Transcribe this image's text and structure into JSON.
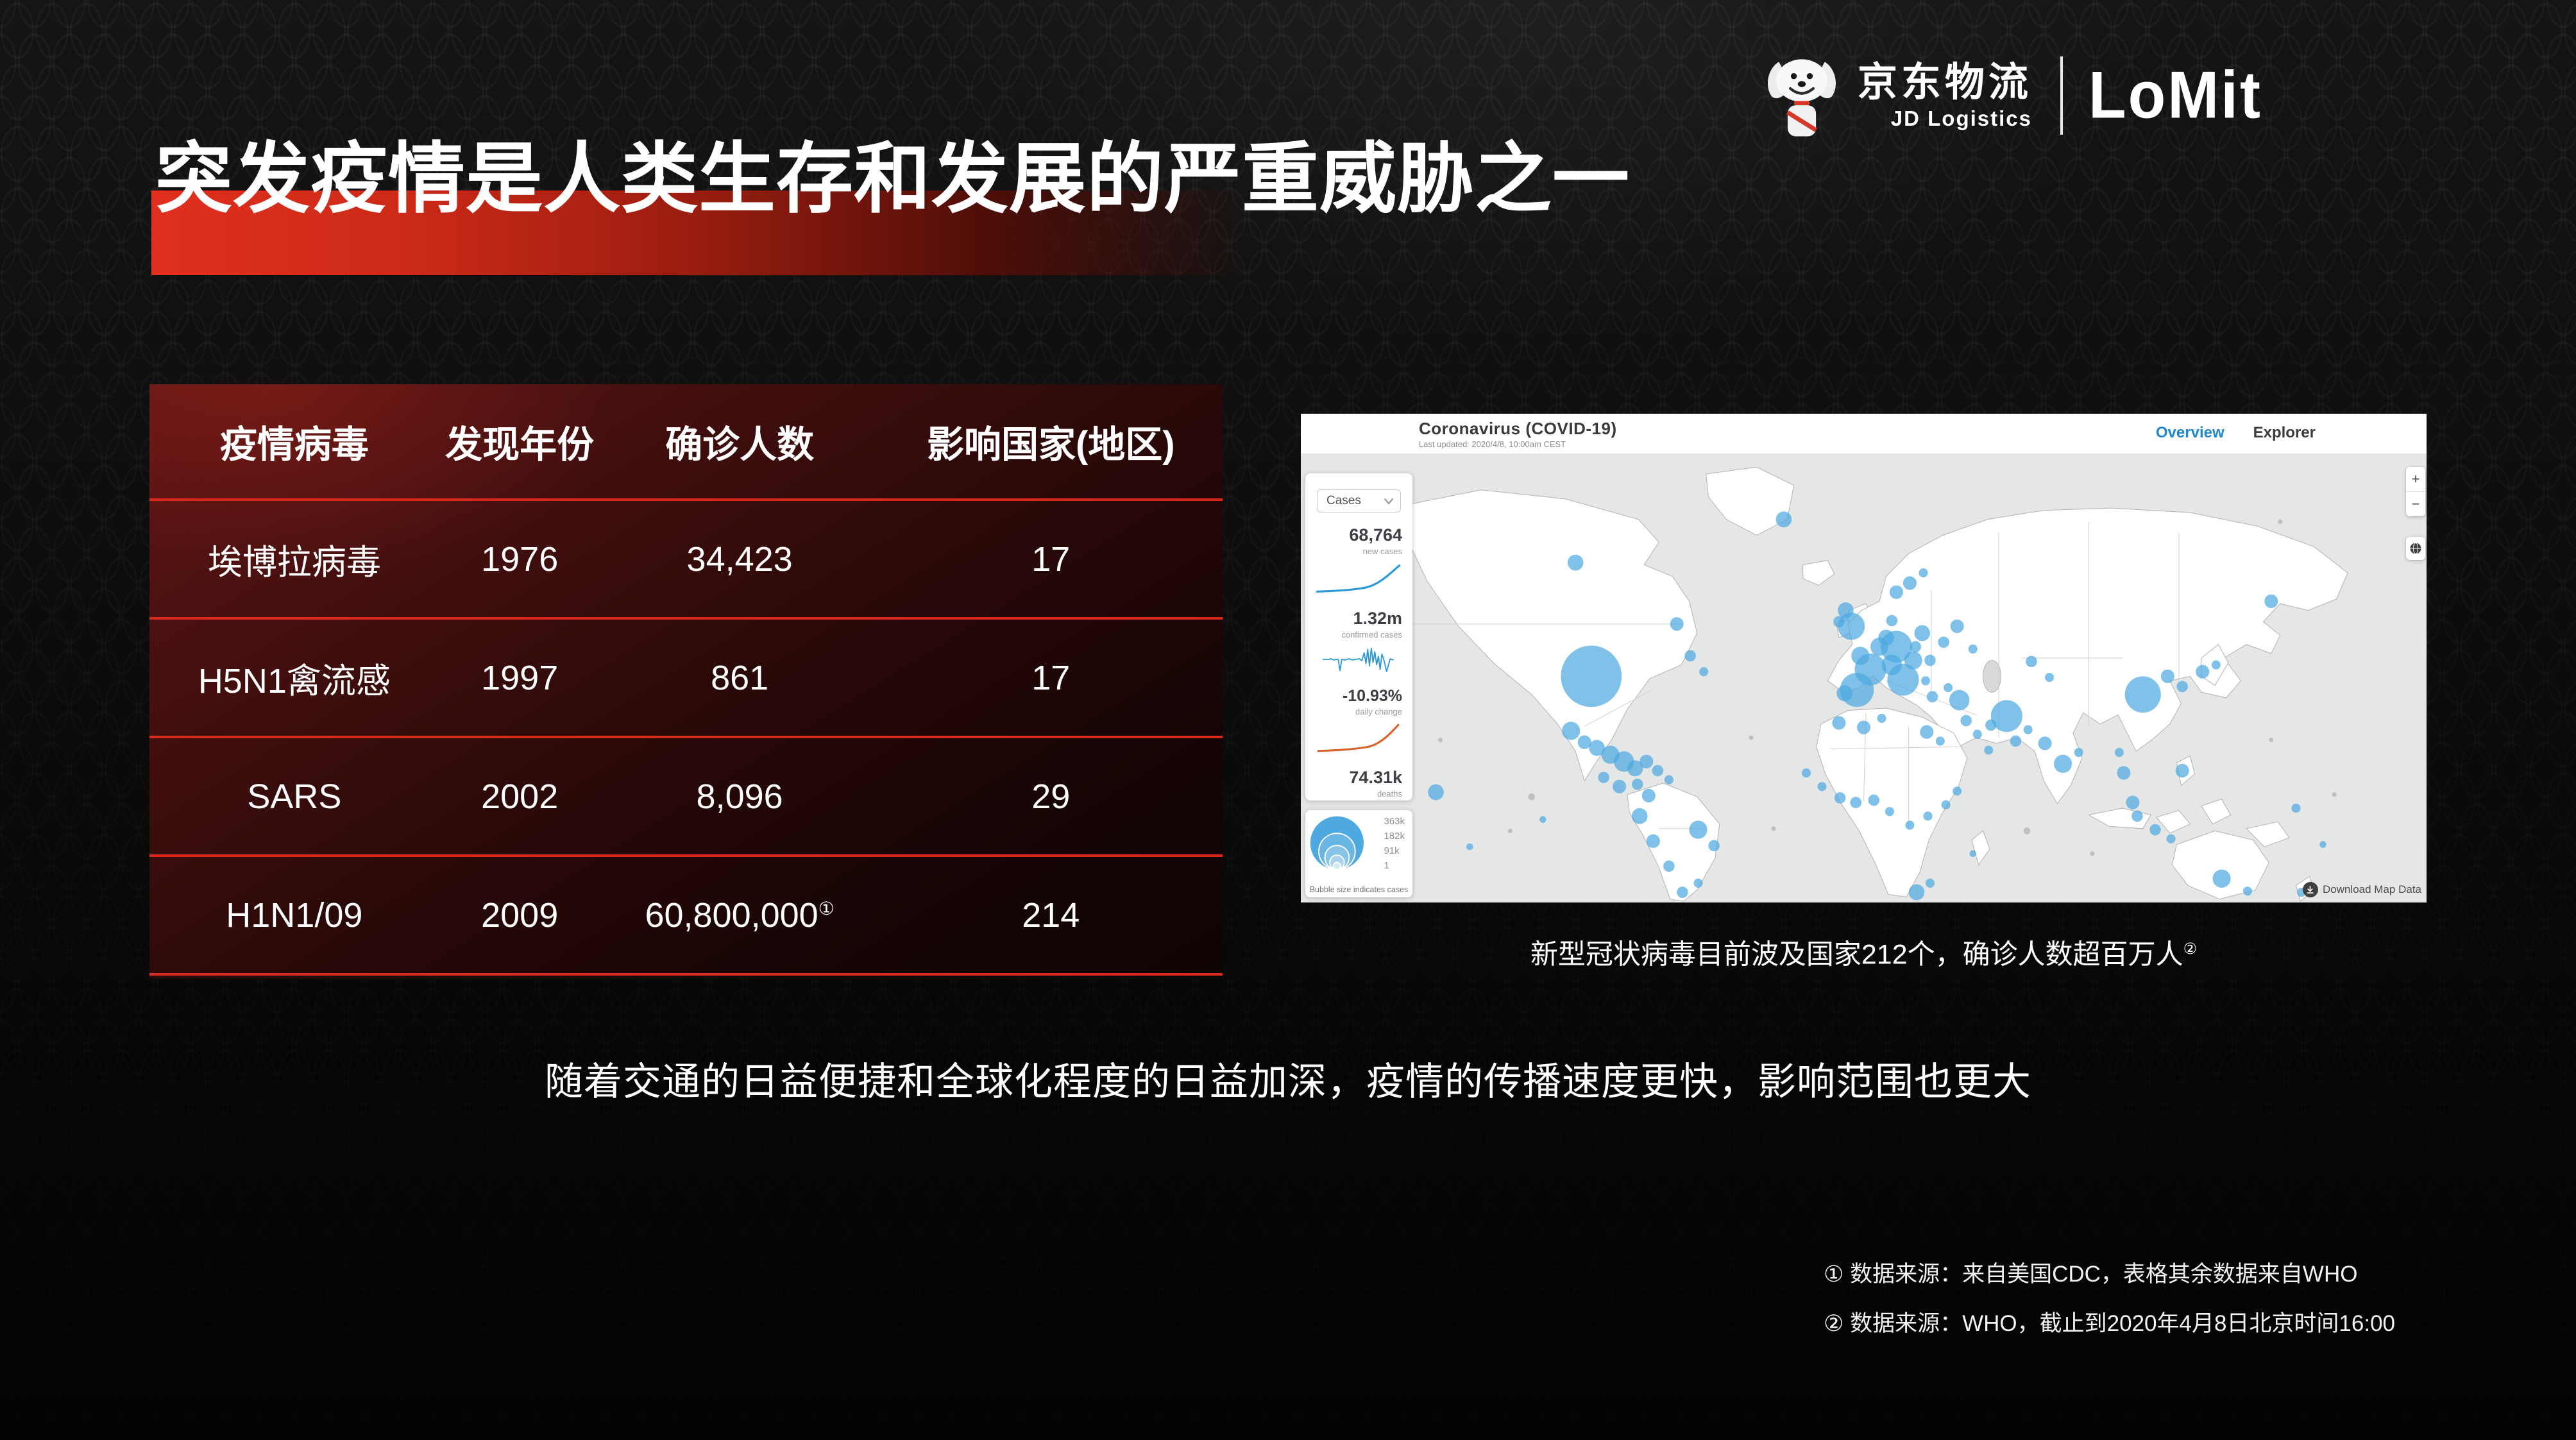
{
  "brand": {
    "jd_cn": "京东物流",
    "jd_en": "JD Logistics",
    "partner": "LoMit"
  },
  "title": "突发疫情是人类生存和发展的严重威胁之一",
  "table": {
    "headers": [
      "疫情病毒",
      "发现年份",
      "确诊人数",
      "影响国家(地区)"
    ],
    "rows": [
      {
        "virus": "埃博拉病毒",
        "year": "1976",
        "cases": "34,423",
        "sup": "",
        "countries": "17"
      },
      {
        "virus": "H5N1禽流感",
        "year": "1997",
        "cases": "861",
        "sup": "",
        "countries": "17"
      },
      {
        "virus": "SARS",
        "year": "2002",
        "cases": "8,096",
        "sup": "",
        "countries": "29"
      },
      {
        "virus": "H1N1/09",
        "year": "2009",
        "cases": "60,800,000",
        "sup": "①",
        "countries": "214"
      }
    ]
  },
  "dashboard": {
    "title": "Coronavirus (COVID-19)",
    "last_updated": "Last updated: 2020/4/8, 10:00am CEST",
    "tabs": [
      {
        "label": "Overview",
        "active": true
      },
      {
        "label": "Explorer",
        "active": false
      }
    ],
    "filter_label": "Cases",
    "stats": [
      {
        "value": "68,764",
        "label": "new cases"
      },
      {
        "value": "1.32m",
        "label": "confirmed cases"
      },
      {
        "value": "-10.93%",
        "label": "daily change"
      },
      {
        "value": "74.31k",
        "label": "deaths"
      }
    ],
    "legend": {
      "values": [
        "363k",
        "182k",
        "91k",
        "1"
      ],
      "caption": "Bubble size indicates cases"
    },
    "controls": {
      "zoom_in": "+",
      "zoom_out": "−",
      "download": "Download Map Data"
    },
    "colors": {
      "tab_active": "#1e87d0",
      "bubble": "#4da9e0",
      "spark_blue": "#2b99d8",
      "spark_orange": "#d9622b",
      "table_line_red": "#d8291b"
    },
    "map": {
      "bubbles": [
        [
          258,
          196,
          27
        ],
        [
          244,
          96,
          7
        ],
        [
          334,
          150,
          6
        ],
        [
          346,
          178,
          5
        ],
        [
          358,
          192,
          4
        ],
        [
          429,
          58,
          7
        ],
        [
          484,
          138,
          7
        ],
        [
          120,
          298,
          7
        ],
        [
          150,
          346,
          3
        ],
        [
          215,
          322,
          3
        ],
        [
          240,
          244,
          8
        ],
        [
          252,
          254,
          6
        ],
        [
          263,
          259,
          7
        ],
        [
          275,
          265,
          8
        ],
        [
          287,
          271,
          9
        ],
        [
          297,
          277,
          7
        ],
        [
          307,
          271,
          6
        ],
        [
          317,
          279,
          5
        ],
        [
          327,
          287,
          4
        ],
        [
          299,
          291,
          5
        ],
        [
          283,
          293,
          6
        ],
        [
          269,
          285,
          5
        ],
        [
          309,
          301,
          6
        ],
        [
          301,
          319,
          7
        ],
        [
          313,
          341,
          6
        ],
        [
          327,
          363,
          5
        ],
        [
          353,
          331,
          8
        ],
        [
          367,
          345,
          5
        ],
        [
          339,
          386,
          5
        ],
        [
          353,
          378,
          4
        ],
        [
          489,
          152,
          12
        ],
        [
          478,
          148,
          5
        ],
        [
          497,
          178,
          8
        ],
        [
          506,
          190,
          14
        ],
        [
          494,
          208,
          15
        ],
        [
          483,
          211,
          7
        ],
        [
          514,
          170,
          8
        ],
        [
          520,
          162,
          7
        ],
        [
          529,
          170,
          14
        ],
        [
          525,
          186,
          9
        ],
        [
          535,
          199,
          14
        ],
        [
          544,
          182,
          8
        ],
        [
          525,
          147,
          5
        ],
        [
          529,
          122,
          6
        ],
        [
          541,
          114,
          6
        ],
        [
          553,
          105,
          4
        ],
        [
          552,
          158,
          7
        ],
        [
          546,
          170,
          5
        ],
        [
          559,
          182,
          5
        ],
        [
          555,
          200,
          4
        ],
        [
          561,
          214,
          5
        ],
        [
          575,
          206,
          4
        ],
        [
          585,
          217,
          9
        ],
        [
          571,
          166,
          5
        ],
        [
          583,
          152,
          6
        ],
        [
          597,
          172,
          4
        ],
        [
          591,
          235,
          5
        ],
        [
          601,
          247,
          4
        ],
        [
          613,
          239,
          5
        ],
        [
          627,
          231,
          14
        ],
        [
          635,
          253,
          5
        ],
        [
          646,
          243,
          4
        ],
        [
          611,
          261,
          4
        ],
        [
          649,
          183,
          5
        ],
        [
          665,
          197,
          4
        ],
        [
          661,
          255,
          6
        ],
        [
          677,
          273,
          8
        ],
        [
          691,
          263,
          4
        ],
        [
          748,
          212,
          16
        ],
        [
          770,
          196,
          6
        ],
        [
          783,
          205,
          5
        ],
        [
          801,
          192,
          6
        ],
        [
          813,
          186,
          4
        ],
        [
          727,
          263,
          4
        ],
        [
          731,
          281,
          6
        ],
        [
          739,
          307,
          6
        ],
        [
          743,
          319,
          5
        ],
        [
          759,
          331,
          5
        ],
        [
          773,
          339,
          4
        ],
        [
          783,
          279,
          6
        ],
        [
          862,
          130,
          6
        ],
        [
          884,
          312,
          4
        ],
        [
          908,
          344,
          3
        ],
        [
          478,
          237,
          6
        ],
        [
          500,
          241,
          6
        ],
        [
          516,
          233,
          4
        ],
        [
          556,
          245,
          6
        ],
        [
          568,
          253,
          4
        ],
        [
          449,
          281,
          4
        ],
        [
          463,
          293,
          4
        ],
        [
          479,
          303,
          5
        ],
        [
          493,
          307,
          5
        ],
        [
          509,
          305,
          5
        ],
        [
          523,
          315,
          4
        ],
        [
          541,
          327,
          4
        ],
        [
          557,
          319,
          4
        ],
        [
          573,
          309,
          4
        ],
        [
          583,
          297,
          4
        ],
        [
          547,
          386,
          7
        ],
        [
          559,
          378,
          4
        ],
        [
          597,
          352,
          3
        ],
        [
          818,
          374,
          8
        ],
        [
          841,
          385,
          4
        ],
        [
          889,
          386,
          4
        ]
      ],
      "gray_dots": [
        [
          205,
          302,
          3
        ],
        [
          186,
          332,
          2
        ],
        [
          645,
          332,
          3
        ],
        [
          703,
          352,
          2
        ],
        [
          862,
          252,
          2
        ],
        [
          124,
          252,
          2
        ],
        [
          97,
          322,
          2
        ],
        [
          918,
          300,
          2
        ],
        [
          870,
          60,
          2
        ],
        [
          50,
          180,
          2
        ],
        [
          400,
          250,
          2
        ],
        [
          420,
          330,
          2
        ]
      ]
    }
  },
  "map_caption": {
    "text": "新型冠状病毒目前波及国家212个，确诊人数超百万人",
    "sup": "②"
  },
  "statement": "随着交通的日益便捷和全球化程度的日益加深，疫情的传播速度更快，影响范围也更大",
  "footnotes": [
    "① 数据来源：来自美国CDC，表格其余数据来自WHO",
    "② 数据来源：WHO，截止到2020年4月8日北京时间16:00"
  ]
}
